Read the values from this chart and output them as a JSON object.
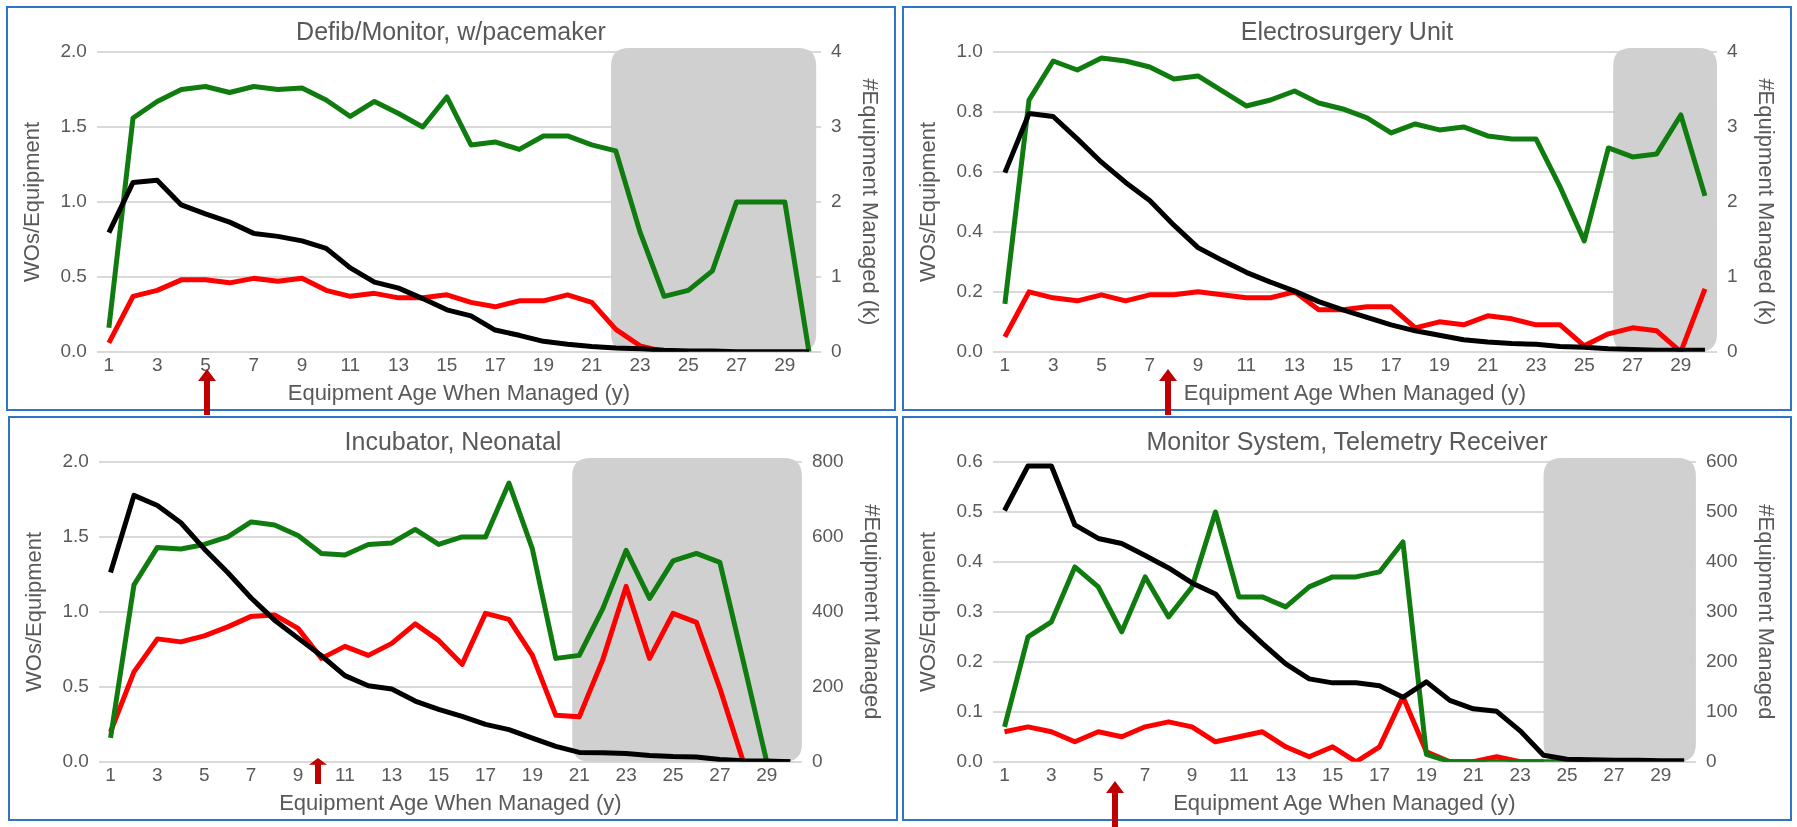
{
  "chart_data": [
    {
      "type": "line",
      "title": "Defib/Monitor, w/pacemaker",
      "xlabel": "Equipment Age When Managed (y)",
      "ylabel": "WOs/Equipment",
      "y2label": "#Equipment Managed (k)",
      "x": [
        1,
        2,
        3,
        4,
        5,
        6,
        7,
        8,
        9,
        10,
        11,
        12,
        13,
        14,
        15,
        16,
        17,
        18,
        19,
        20,
        21,
        22,
        23,
        24,
        25,
        26,
        27,
        28,
        29,
        30
      ],
      "xlim": [
        0.5,
        30.5
      ],
      "xticks": [
        1,
        3,
        5,
        7,
        9,
        11,
        13,
        15,
        17,
        19,
        21,
        23,
        25,
        27,
        29
      ],
      "ylim": [
        0,
        2
      ],
      "yticks": [
        {
          "value": 0,
          "label": "0.0"
        },
        {
          "value": 0.5,
          "label": "0.5"
        },
        {
          "value": 1,
          "label": "1.0"
        },
        {
          "value": 1.5,
          "label": "1.5"
        },
        {
          "value": 2,
          "label": "2.0"
        }
      ],
      "y2lim": [
        0,
        4
      ],
      "y2ticks": [
        0,
        1,
        2,
        3,
        4
      ],
      "grid": "y",
      "marker": "none",
      "bands": [
        {
          "axis": "x",
          "from": 21.8,
          "to": 30.3,
          "color": "#d0d0d0"
        }
      ],
      "series": [
        {
          "color": "#107c10",
          "values": [
            0.16,
            1.56,
            1.67,
            1.75,
            1.77,
            1.73,
            1.77,
            1.75,
            1.76,
            1.68,
            1.57,
            1.67,
            1.59,
            1.5,
            1.7,
            1.38,
            1.4,
            1.35,
            1.44,
            1.44,
            1.38,
            1.34,
            0.8,
            0.37,
            0.41,
            0.54,
            1.0,
            1.0,
            1.0,
            0.0
          ]
        },
        {
          "color": "#ff0000",
          "values": [
            0.06,
            0.37,
            0.41,
            0.48,
            0.48,
            0.46,
            0.49,
            0.47,
            0.49,
            0.41,
            0.37,
            0.39,
            0.36,
            0.36,
            0.38,
            0.33,
            0.3,
            0.34,
            0.34,
            0.38,
            0.33,
            0.15,
            0.04,
            0,
            0,
            null,
            null,
            null,
            null,
            null
          ]
        },
        {
          "color": "#000000",
          "axis": "y2",
          "values": [
            1.59,
            2.26,
            2.29,
            1.96,
            1.84,
            1.73,
            1.58,
            1.54,
            1.48,
            1.38,
            1.12,
            0.93,
            0.85,
            0.71,
            0.56,
            0.48,
            0.29,
            0.22,
            0.14,
            0.1,
            0.07,
            0.05,
            0.04,
            0.02,
            0.01,
            0.01,
            0,
            0,
            0,
            0
          ]
        }
      ]
    },
    {
      "type": "line",
      "title": "Electrosurgery Unit",
      "xlabel": "Equipment Age When Managed (y)",
      "ylabel": "WOs/Equipment",
      "y2label": "#Equipment Managed (k)",
      "x": [
        1,
        2,
        3,
        4,
        5,
        6,
        7,
        8,
        9,
        10,
        11,
        12,
        13,
        14,
        15,
        16,
        17,
        18,
        19,
        20,
        21,
        22,
        23,
        24,
        25,
        26,
        27,
        28,
        29,
        30
      ],
      "xlim": [
        0.5,
        30.5
      ],
      "xticks": [
        1,
        3,
        5,
        7,
        9,
        11,
        13,
        15,
        17,
        19,
        21,
        23,
        25,
        27,
        29
      ],
      "ylim": [
        0,
        1
      ],
      "yticks": [
        {
          "value": 0,
          "label": "0.0"
        },
        {
          "value": 0.2,
          "label": "0.2"
        },
        {
          "value": 0.4,
          "label": "0.4"
        },
        {
          "value": 0.6,
          "label": "0.6"
        },
        {
          "value": 0.8,
          "label": "0.8"
        },
        {
          "value": 1,
          "label": "1.0"
        }
      ],
      "y2lim": [
        0,
        4
      ],
      "y2ticks": [
        0,
        1,
        2,
        3,
        4
      ],
      "grid": "y",
      "marker": "none",
      "bands": [
        {
          "axis": "x",
          "from": 26.2,
          "to": 30.5,
          "color": "#d0d0d0"
        }
      ],
      "series": [
        {
          "color": "#107c10",
          "values": [
            0.16,
            0.84,
            0.97,
            0.94,
            0.98,
            0.97,
            0.95,
            0.91,
            0.92,
            0.87,
            0.82,
            0.84,
            0.87,
            0.83,
            0.81,
            0.78,
            0.73,
            0.76,
            0.74,
            0.75,
            0.72,
            0.71,
            0.71,
            0.55,
            0.37,
            0.68,
            0.65,
            0.66,
            0.79,
            0.52
          ]
        },
        {
          "color": "#ff0000",
          "values": [
            0.05,
            0.2,
            0.18,
            0.17,
            0.19,
            0.17,
            0.19,
            0.19,
            0.2,
            0.19,
            0.18,
            0.18,
            0.2,
            0.14,
            0.14,
            0.15,
            0.15,
            0.08,
            0.1,
            0.09,
            0.12,
            0.11,
            0.09,
            0.09,
            0.02,
            0.06,
            0.08,
            0.07,
            0,
            0.21
          ]
        },
        {
          "color": "#000000",
          "axis": "y2",
          "values": [
            2.39,
            3.18,
            3.14,
            2.84,
            2.53,
            2.26,
            2.02,
            1.69,
            1.39,
            1.22,
            1.06,
            0.93,
            0.81,
            0.67,
            0.56,
            0.46,
            0.36,
            0.28,
            0.22,
            0.16,
            0.13,
            0.11,
            0.1,
            0.07,
            0.06,
            0.04,
            0.03,
            0.02,
            0.02,
            0.02
          ]
        }
      ]
    },
    {
      "type": "line",
      "title": "Incubator, Neonatal",
      "xlabel": "Equipment Age When Managed (y)",
      "ylabel": "WOs/Equipment",
      "y2label": "#Equipment Managed",
      "x": [
        1,
        2,
        3,
        4,
        5,
        6,
        7,
        8,
        9,
        10,
        11,
        12,
        13,
        14,
        15,
        16,
        17,
        18,
        19,
        20,
        21,
        22,
        23,
        24,
        25,
        26,
        27,
        28,
        29,
        30
      ],
      "xlim": [
        0.5,
        30.5
      ],
      "xticks": [
        1,
        3,
        5,
        7,
        9,
        11,
        13,
        15,
        17,
        19,
        21,
        23,
        25,
        27,
        29
      ],
      "ylim": [
        0,
        2
      ],
      "yticks": [
        {
          "value": 0,
          "label": "0.0"
        },
        {
          "value": 0.5,
          "label": "0.5"
        },
        {
          "value": 1,
          "label": "1.0"
        },
        {
          "value": 1.5,
          "label": "1.5"
        },
        {
          "value": 2,
          "label": "2.0"
        }
      ],
      "y2lim": [
        0,
        800
      ],
      "y2ticks": [
        0,
        200,
        400,
        600,
        800
      ],
      "grid": "y",
      "marker": "none",
      "bands": [
        {
          "axis": "x",
          "from": 20.7,
          "to": 30.5,
          "color": "#d0d0d0"
        }
      ],
      "series": [
        {
          "color": "#107c10",
          "values": [
            0.16,
            1.18,
            1.43,
            1.42,
            1.45,
            1.5,
            1.6,
            1.58,
            1.51,
            1.39,
            1.38,
            1.45,
            1.46,
            1.55,
            1.45,
            1.5,
            1.5,
            1.86,
            1.42,
            0.69,
            0.71,
            1.02,
            1.41,
            1.09,
            1.34,
            1.39,
            1.33,
            0.67,
            0,
            0
          ]
        },
        {
          "color": "#ff0000",
          "values": [
            0.2,
            0.6,
            0.82,
            0.8,
            0.84,
            0.9,
            0.97,
            0.98,
            0.89,
            0.69,
            0.77,
            0.71,
            0.79,
            0.92,
            0.81,
            0.65,
            0.99,
            0.95,
            0.71,
            0.31,
            0.3,
            0.68,
            1.17,
            0.69,
            0.99,
            0.93,
            0.49,
            0,
            0,
            0
          ]
        },
        {
          "color": "#000000",
          "axis": "y2",
          "values": [
            505,
            711,
            684,
            638,
            568,
            505,
            437,
            378,
            330,
            283,
            230,
            203,
            194,
            162,
            140,
            121,
            100,
            86,
            63,
            41,
            25,
            24,
            22,
            17,
            14,
            13,
            6,
            3,
            2,
            0
          ]
        }
      ]
    },
    {
      "type": "line",
      "title": "Monitor System, Telemetry Receiver",
      "xlabel": "Equipment Age When Managed (y)",
      "ylabel": "WOs/Equipment",
      "y2label": "#Equipment Managed",
      "x": [
        1,
        2,
        3,
        4,
        5,
        6,
        7,
        8,
        9,
        10,
        11,
        12,
        13,
        14,
        15,
        16,
        17,
        18,
        19,
        20,
        21,
        22,
        23,
        24,
        25,
        26,
        27,
        28,
        29,
        30
      ],
      "xlim": [
        0.5,
        30.5
      ],
      "xticks": [
        1,
        3,
        5,
        7,
        9,
        11,
        13,
        15,
        17,
        19,
        21,
        23,
        25,
        27,
        29
      ],
      "ylim": [
        0,
        0.6
      ],
      "yticks": [
        {
          "value": 0,
          "label": "0.0"
        },
        {
          "value": 0.1,
          "label": "0.1"
        },
        {
          "value": 0.2,
          "label": "0.2"
        },
        {
          "value": 0.3,
          "label": "0.3"
        },
        {
          "value": 0.4,
          "label": "0.4"
        },
        {
          "value": 0.5,
          "label": "0.5"
        },
        {
          "value": 0.6,
          "label": "0.6"
        }
      ],
      "y2lim": [
        0,
        600
      ],
      "y2ticks": [
        0,
        100,
        200,
        300,
        400,
        500,
        600
      ],
      "grid": "y",
      "marker": "none",
      "bands": [
        {
          "axis": "x",
          "from": 24.0,
          "to": 30.5,
          "color": "#d0d0d0"
        }
      ],
      "series": [
        {
          "color": "#107c10",
          "values": [
            0.07,
            0.25,
            0.28,
            0.39,
            0.35,
            0.26,
            0.37,
            0.29,
            0.35,
            0.5,
            0.33,
            0.33,
            0.31,
            0.35,
            0.37,
            0.37,
            0.38,
            0.44,
            0.015,
            0,
            0,
            0,
            0,
            0,
            0,
            0,
            null,
            null,
            null,
            null
          ]
        },
        {
          "color": "#ff0000",
          "values": [
            0.06,
            0.07,
            0.06,
            0.04,
            0.06,
            0.05,
            0.07,
            0.08,
            0.07,
            0.04,
            0.05,
            0.06,
            0.03,
            0.01,
            0.03,
            0,
            0.03,
            0.13,
            0.02,
            0,
            0,
            0.01,
            0,
            0,
            null,
            null,
            null,
            null,
            null,
            null
          ]
        },
        {
          "color": "#000000",
          "axis": "y2",
          "values": [
            503,
            592,
            592,
            474,
            447,
            437,
            413,
            388,
            358,
            336,
            281,
            237,
            196,
            166,
            158,
            158,
            152,
            129,
            160,
            123,
            106,
            101,
            62,
            13,
            5,
            4,
            3,
            3,
            2,
            2
          ]
        }
      ]
    }
  ]
}
